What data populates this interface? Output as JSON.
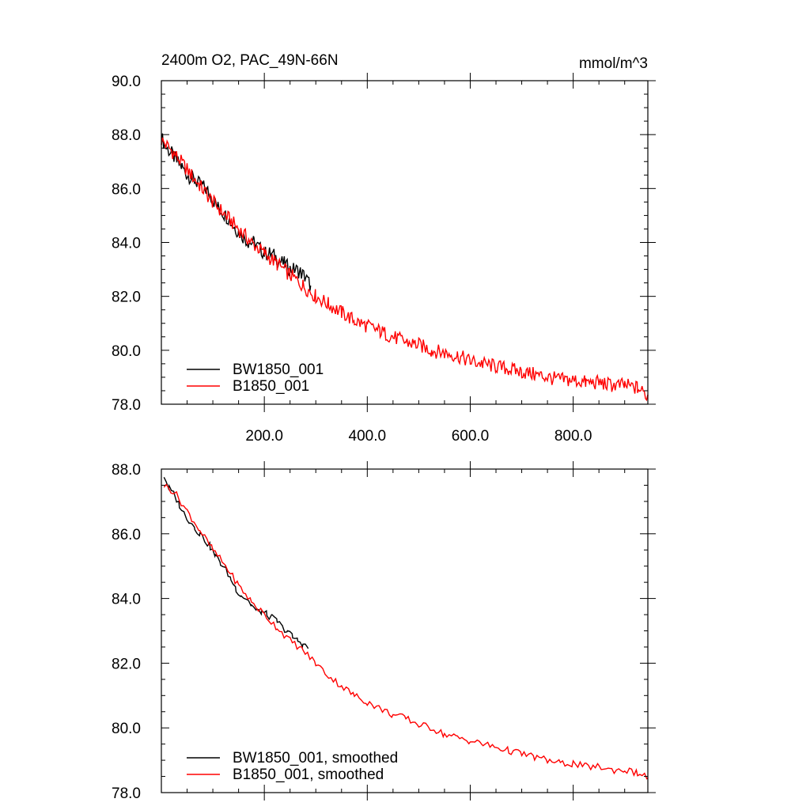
{
  "chart_data": [
    {
      "type": "line",
      "title": "2400m O2, PAC_49N-66N",
      "units_label": "mmol/m^3",
      "xlim": [
        0,
        945
      ],
      "ylim": [
        78.0,
        90.0
      ],
      "x_ticks": [
        200,
        400,
        600,
        800
      ],
      "x_tick_labels": [
        "200.0",
        "400.0",
        "600.0",
        "800.0"
      ],
      "y_ticks": [
        78,
        80,
        82,
        84,
        86,
        88,
        90
      ],
      "y_tick_labels": [
        "78.0",
        "80.0",
        "82.0",
        "84.0",
        "86.0",
        "88.0",
        "90.0"
      ],
      "legend_position": "bottom-left",
      "grid": false,
      "series": [
        {
          "name": "BW1850_001",
          "color": "#000000",
          "x": [
            0,
            10,
            20,
            30,
            40,
            50,
            60,
            70,
            80,
            90,
            100,
            110,
            120,
            130,
            140,
            150,
            160,
            170,
            180,
            190,
            200,
            210,
            220,
            230,
            240,
            250,
            260,
            270,
            280,
            290
          ],
          "y": [
            87.9,
            87.5,
            87.3,
            87.0,
            86.8,
            86.5,
            86.4,
            86.2,
            86.1,
            85.9,
            85.6,
            85.3,
            85.1,
            84.9,
            84.6,
            84.4,
            84.2,
            84.0,
            84.0,
            83.8,
            83.6,
            83.6,
            83.5,
            83.3,
            83.2,
            83.0,
            83.0,
            82.9,
            82.7,
            82.4
          ]
        },
        {
          "name": "B1850_001",
          "color": "#ff0000",
          "x": [
            0,
            25,
            50,
            75,
            100,
            125,
            150,
            175,
            200,
            225,
            250,
            275,
            300,
            325,
            350,
            375,
            400,
            425,
            450,
            475,
            500,
            525,
            550,
            575,
            600,
            625,
            650,
            675,
            700,
            725,
            750,
            775,
            800,
            825,
            850,
            875,
            900,
            925,
            945
          ],
          "y": [
            87.8,
            87.3,
            86.7,
            86.1,
            85.5,
            85.0,
            84.5,
            84.0,
            83.6,
            83.2,
            82.8,
            82.4,
            82.0,
            81.7,
            81.4,
            81.1,
            80.9,
            80.7,
            80.5,
            80.3,
            80.2,
            80.0,
            79.9,
            79.8,
            79.6,
            79.5,
            79.4,
            79.3,
            79.2,
            79.1,
            79.0,
            78.9,
            78.9,
            78.8,
            78.8,
            78.7,
            78.7,
            78.6,
            78.3
          ]
        }
      ]
    },
    {
      "type": "line",
      "xlim": [
        0,
        945
      ],
      "ylim": [
        78.0,
        88.0
      ],
      "x_ticks": [
        200,
        400,
        600,
        800
      ],
      "y_ticks": [
        78,
        80,
        82,
        84,
        86,
        88
      ],
      "y_tick_labels": [
        "78.0",
        "80.0",
        "82.0",
        "84.0",
        "86.0",
        "88.0"
      ],
      "legend_position": "bottom-left",
      "grid": false,
      "series": [
        {
          "name": "BW1850_001, smoothed",
          "color": "#000000",
          "x": [
            5,
            15,
            25,
            35,
            45,
            55,
            65,
            75,
            85,
            95,
            105,
            115,
            125,
            135,
            145,
            155,
            165,
            175,
            185,
            195,
            205,
            215,
            225,
            235,
            245,
            255,
            265,
            275,
            285
          ],
          "y": [
            87.8,
            87.4,
            87.2,
            86.9,
            86.6,
            86.4,
            86.2,
            86.0,
            85.8,
            85.6,
            85.3,
            85.1,
            84.9,
            84.6,
            84.3,
            84.1,
            84.0,
            83.8,
            83.6,
            83.6,
            83.5,
            83.4,
            83.3,
            83.1,
            83.0,
            82.8,
            82.7,
            82.6,
            82.45
          ]
        },
        {
          "name": "B1850_001, smoothed",
          "color": "#ff0000",
          "x": [
            5,
            25,
            50,
            75,
            100,
            125,
            150,
            175,
            200,
            225,
            250,
            275,
            300,
            325,
            350,
            375,
            400,
            425,
            450,
            475,
            500,
            525,
            550,
            575,
            600,
            625,
            650,
            675,
            700,
            725,
            750,
            775,
            800,
            825,
            850,
            875,
            900,
            925,
            945
          ],
          "y": [
            87.5,
            87.3,
            86.7,
            86.1,
            85.5,
            85.0,
            84.4,
            83.9,
            83.5,
            83.1,
            82.7,
            82.4,
            82.0,
            81.6,
            81.3,
            81.0,
            80.8,
            80.6,
            80.4,
            80.3,
            80.1,
            80.0,
            79.8,
            79.7,
            79.6,
            79.5,
            79.4,
            79.3,
            79.2,
            79.1,
            79.0,
            78.9,
            78.9,
            78.8,
            78.8,
            78.7,
            78.7,
            78.6,
            78.45
          ]
        }
      ]
    }
  ]
}
